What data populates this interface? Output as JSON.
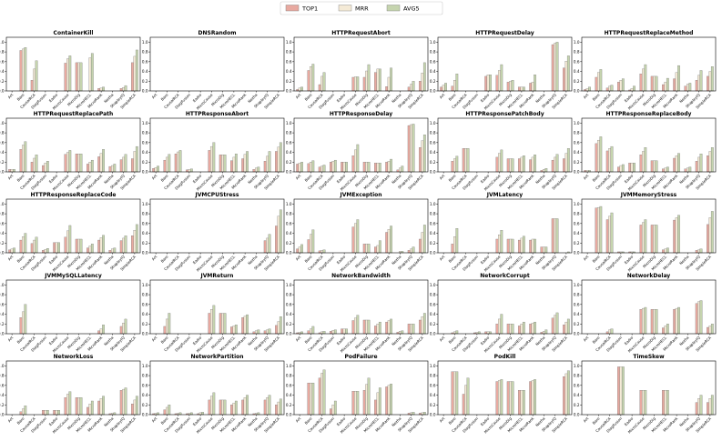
{
  "chart_data": {
    "type": "bar",
    "legend": {
      "placement": "top-center",
      "entries": [
        {
          "name": "TOP1",
          "color": "#e8a9a0"
        },
        {
          "name": "MRR",
          "color": "#f4ead6"
        },
        {
          "name": "AVG5",
          "color": "#c5d4ae"
        }
      ]
    },
    "categories": [
      "Art",
      "Baro",
      "CausalRCA",
      "DiagFusion",
      "Eadro",
      "MicroCause",
      "MicroDig",
      "MicroHECL",
      "MicroRank",
      "Nezha",
      "ShapleyIQ",
      "SimpleRCA"
    ],
    "yticks": [
      "0.0",
      "0.2",
      "0.4",
      "0.6",
      "0.8",
      "1.0"
    ],
    "ylim": [
      0,
      1.1
    ],
    "subplots": [
      {
        "title": "ContainerKill",
        "TOP1": [
          0,
          0.83,
          0.22,
          0,
          0,
          0.57,
          0.58,
          0,
          0.05,
          0,
          0.05,
          0.58
        ],
        "MRR": [
          0,
          0.86,
          0.45,
          0,
          0,
          0.66,
          0.58,
          0.68,
          0.06,
          0,
          0.07,
          0.71
        ],
        "AVG5": [
          0,
          0.89,
          0.62,
          0,
          0,
          0.72,
          0.58,
          0.77,
          0.08,
          0,
          0.11,
          0.84
        ]
      },
      {
        "title": "DNSRandom",
        "TOP1": [
          0,
          0,
          0,
          0,
          0,
          0,
          0,
          0,
          0,
          0,
          0,
          0
        ],
        "MRR": [
          0,
          0,
          0,
          0,
          0,
          0,
          0,
          0,
          0,
          0,
          0,
          0
        ],
        "AVG5": [
          0,
          0,
          0,
          0,
          0,
          0,
          0,
          0,
          0,
          0,
          0,
          0
        ]
      },
      {
        "title": "HTTPRequestAbort",
        "TOP1": [
          0.03,
          0.42,
          0.13,
          0,
          0,
          0.28,
          0.28,
          0.38,
          0.09,
          0,
          0.08,
          0.2
        ],
        "MRR": [
          0.06,
          0.5,
          0.3,
          0,
          0,
          0.29,
          0.41,
          0.45,
          0.28,
          0,
          0.14,
          0.37
        ],
        "AVG5": [
          0.08,
          0.55,
          0.38,
          0,
          0,
          0.29,
          0.54,
          0.45,
          0.47,
          0,
          0.2,
          0.58
        ]
      },
      {
        "title": "HTTPRequestDelay",
        "TOP1": [
          0.08,
          0.1,
          0,
          0,
          0.3,
          0.32,
          0.18,
          0.08,
          0.16,
          0,
          0.95,
          0.47
        ],
        "MRR": [
          0.12,
          0.22,
          0,
          0,
          0.33,
          0.42,
          0.2,
          0.08,
          0.18,
          0,
          0.98,
          0.61
        ],
        "AVG5": [
          0.16,
          0.35,
          0,
          0,
          0.33,
          0.54,
          0.22,
          0.08,
          0.33,
          0,
          1.0,
          0.72
        ]
      },
      {
        "title": "HTTPRequestReplaceMethod",
        "TOP1": [
          0.03,
          0.28,
          0.06,
          0.18,
          0.02,
          0.35,
          0.3,
          0.13,
          0.25,
          0.1,
          0.22,
          0.3
        ],
        "MRR": [
          0.05,
          0.38,
          0.1,
          0.22,
          0.05,
          0.45,
          0.3,
          0.18,
          0.38,
          0.14,
          0.32,
          0.4
        ],
        "AVG5": [
          0.08,
          0.44,
          0.12,
          0.25,
          0.1,
          0.54,
          0.3,
          0.26,
          0.52,
          0.16,
          0.42,
          0.5
        ]
      },
      {
        "title": "HTTPRequestReplacePath",
        "TOP1": [
          0.05,
          0.46,
          0.2,
          0.13,
          0,
          0.36,
          0.37,
          0.16,
          0.31,
          0.11,
          0.25,
          0.27
        ],
        "MRR": [
          0.05,
          0.55,
          0.28,
          0.18,
          0,
          0.4,
          0.37,
          0.2,
          0.38,
          0.13,
          0.3,
          0.42
        ],
        "AVG5": [
          0.05,
          0.62,
          0.35,
          0.22,
          0,
          0.44,
          0.37,
          0.24,
          0.46,
          0.16,
          0.36,
          0.52
        ]
      },
      {
        "title": "HTTPResponseAbort",
        "TOP1": [
          0.07,
          0.24,
          0.37,
          0.04,
          0,
          0.44,
          0.35,
          0.23,
          0.27,
          0.05,
          0.22,
          0.42
        ],
        "MRR": [
          0.09,
          0.3,
          0.41,
          0.05,
          0,
          0.52,
          0.35,
          0.3,
          0.36,
          0.08,
          0.32,
          0.51
        ],
        "AVG5": [
          0.12,
          0.36,
          0.44,
          0.06,
          0,
          0.6,
          0.35,
          0.37,
          0.42,
          0.1,
          0.42,
          0.6
        ]
      },
      {
        "title": "HTTPResponseDelay",
        "TOP1": [
          0.16,
          0.17,
          0.1,
          0.2,
          0.2,
          0.33,
          0.2,
          0.18,
          0.2,
          0.04,
          0.95,
          0.5
        ],
        "MRR": [
          0.18,
          0.2,
          0.12,
          0.22,
          0.2,
          0.45,
          0.2,
          0.18,
          0.22,
          0.08,
          0.97,
          0.64
        ],
        "AVG5": [
          0.2,
          0.23,
          0.14,
          0.24,
          0.2,
          0.56,
          0.2,
          0.18,
          0.26,
          0.12,
          0.98,
          0.76
        ]
      },
      {
        "title": "HTTPResponsePatchBody",
        "TOP1": [
          0,
          0.22,
          0.48,
          0,
          0,
          0.3,
          0.27,
          0.27,
          0.25,
          0.03,
          0.24,
          0.27
        ],
        "MRR": [
          0,
          0.27,
          0.48,
          0,
          0,
          0.38,
          0.27,
          0.3,
          0.3,
          0.05,
          0.3,
          0.38
        ],
        "AVG5": [
          0,
          0.32,
          0.48,
          0,
          0,
          0.45,
          0.27,
          0.33,
          0.35,
          0.07,
          0.36,
          0.48
        ]
      },
      {
        "title": "HTTPResponseReplaceBody",
        "TOP1": [
          0.03,
          0.58,
          0.43,
          0.1,
          0.18,
          0.35,
          0.23,
          0.06,
          0.28,
          0.06,
          0.22,
          0.33
        ],
        "MRR": [
          0.03,
          0.65,
          0.48,
          0.13,
          0.18,
          0.42,
          0.23,
          0.08,
          0.33,
          0.08,
          0.3,
          0.42
        ],
        "AVG5": [
          0.03,
          0.72,
          0.52,
          0.15,
          0.18,
          0.5,
          0.23,
          0.1,
          0.38,
          0.1,
          0.37,
          0.5
        ]
      },
      {
        "title": "HTTPResponseReplaceCode",
        "TOP1": [
          0.06,
          0.26,
          0.19,
          0.05,
          0.21,
          0.32,
          0.28,
          0.1,
          0.26,
          0.05,
          0.25,
          0.35
        ],
        "MRR": [
          0.08,
          0.33,
          0.26,
          0.07,
          0.21,
          0.45,
          0.28,
          0.14,
          0.31,
          0.08,
          0.3,
          0.46
        ],
        "AVG5": [
          0.1,
          0.4,
          0.32,
          0.09,
          0.21,
          0.56,
          0.28,
          0.18,
          0.36,
          0.1,
          0.35,
          0.58
        ]
      },
      {
        "title": "JVMCPUStress",
        "TOP1": [
          0,
          0,
          0,
          0,
          0,
          0,
          0,
          0,
          0,
          0,
          0.25,
          0.55
        ],
        "MRR": [
          0,
          0,
          0,
          0,
          0,
          0,
          0,
          0,
          0,
          0,
          0.3,
          0.75
        ],
        "AVG5": [
          0,
          0,
          0,
          0,
          0,
          0,
          0,
          0,
          0,
          0,
          0.38,
          0.88
        ]
      },
      {
        "title": "JVMException",
        "TOP1": [
          0.08,
          0.27,
          0.04,
          0,
          0,
          0.53,
          0.18,
          0.12,
          0.42,
          0,
          0.05,
          0.28
        ],
        "MRR": [
          0.12,
          0.38,
          0.05,
          0,
          0,
          0.6,
          0.18,
          0.15,
          0.48,
          0.03,
          0.08,
          0.42
        ],
        "AVG5": [
          0.17,
          0.47,
          0.06,
          0,
          0,
          0.68,
          0.18,
          0.25,
          0.55,
          0.03,
          0.12,
          0.57
        ]
      },
      {
        "title": "JVMLatency",
        "TOP1": [
          0,
          0.18,
          0,
          0,
          0,
          0.28,
          0.28,
          0.26,
          0.26,
          0.12,
          0.7,
          0
        ],
        "MRR": [
          0,
          0.33,
          0,
          0,
          0,
          0.37,
          0.28,
          0.3,
          0.28,
          0.12,
          0.7,
          0
        ],
        "AVG5": [
          0,
          0.5,
          0,
          0,
          0,
          0.46,
          0.28,
          0.34,
          0.28,
          0.12,
          0.7,
          0.02
        ]
      },
      {
        "title": "JVMMemoryStress",
        "TOP1": [
          0,
          0.92,
          0.68,
          0.02,
          0.02,
          0.57,
          0.57,
          0.06,
          0.67,
          0,
          0.05,
          0.58
        ],
        "MRR": [
          0,
          0.93,
          0.75,
          0.02,
          0.02,
          0.62,
          0.57,
          0.08,
          0.72,
          0,
          0.06,
          0.72
        ],
        "AVG5": [
          0,
          0.95,
          0.82,
          0.02,
          0.02,
          0.68,
          0.57,
          0.1,
          0.77,
          0,
          0.08,
          0.85
        ]
      },
      {
        "title": "JVMMySQLLatency",
        "TOP1": [
          0,
          0.33,
          0,
          0,
          0,
          0,
          0,
          0,
          0.06,
          0,
          0.15,
          0
        ],
        "MRR": [
          0,
          0.45,
          0,
          0,
          0,
          0,
          0,
          0,
          0.1,
          0,
          0.22,
          0
        ],
        "AVG5": [
          0,
          0.6,
          0,
          0,
          0,
          0,
          0,
          0,
          0.18,
          0,
          0.3,
          0
        ]
      },
      {
        "title": "JVMReturn",
        "TOP1": [
          0,
          0.15,
          0,
          0,
          0,
          0.42,
          0.42,
          0.14,
          0.33,
          0.04,
          0.06,
          0.17
        ],
        "MRR": [
          0,
          0.3,
          0,
          0,
          0,
          0.5,
          0.42,
          0.16,
          0.36,
          0.06,
          0.08,
          0.25
        ],
        "AVG5": [
          0,
          0.42,
          0,
          0,
          0,
          0.58,
          0.42,
          0.18,
          0.39,
          0.08,
          0.1,
          0.35
        ]
      },
      {
        "title": "NetworkBandwidth",
        "TOP1": [
          0.02,
          0.06,
          0.02,
          0.05,
          0.1,
          0.27,
          0.28,
          0.16,
          0.24,
          0.03,
          0.2,
          0.28
        ],
        "MRR": [
          0.03,
          0.1,
          0.04,
          0.07,
          0.1,
          0.32,
          0.28,
          0.2,
          0.27,
          0.05,
          0.2,
          0.35
        ],
        "AVG5": [
          0.04,
          0.15,
          0.05,
          0.08,
          0.1,
          0.38,
          0.28,
          0.24,
          0.3,
          0.06,
          0.2,
          0.42
        ]
      },
      {
        "title": "NetworkCorrupt",
        "TOP1": [
          0,
          0.02,
          0,
          0.02,
          0.04,
          0.2,
          0.2,
          0.16,
          0.2,
          0.03,
          0.32,
          0.18
        ],
        "MRR": [
          0,
          0.04,
          0,
          0.03,
          0.04,
          0.3,
          0.2,
          0.2,
          0.22,
          0.05,
          0.38,
          0.24
        ],
        "AVG5": [
          0,
          0.06,
          0,
          0.04,
          0.04,
          0.4,
          0.2,
          0.24,
          0.24,
          0.08,
          0.43,
          0.3
        ]
      },
      {
        "title": "NetworkDelay",
        "TOP1": [
          0,
          0,
          0.04,
          0,
          0,
          0.5,
          0.5,
          0.12,
          0.5,
          0,
          0.62,
          0.13
        ],
        "MRR": [
          0,
          0,
          0.08,
          0,
          0,
          0.52,
          0.5,
          0.16,
          0.52,
          0,
          0.66,
          0.16
        ],
        "AVG5": [
          0,
          0,
          0.1,
          0,
          0,
          0.54,
          0.5,
          0.2,
          0.54,
          0,
          0.68,
          0.2
        ]
      },
      {
        "title": "NetworkLoss",
        "TOP1": [
          0,
          0.06,
          0,
          0.09,
          0.09,
          0.35,
          0.35,
          0.15,
          0.28,
          0.02,
          0.5,
          0.22
        ],
        "MRR": [
          0,
          0.12,
          0,
          0.09,
          0.09,
          0.42,
          0.35,
          0.22,
          0.33,
          0.03,
          0.52,
          0.3
        ],
        "AVG5": [
          0,
          0.18,
          0,
          0.09,
          0.09,
          0.47,
          0.35,
          0.28,
          0.38,
          0.04,
          0.55,
          0.38
        ]
      },
      {
        "title": "NetworkPartition",
        "TOP1": [
          0.02,
          0.1,
          0.02,
          0.02,
          0.02,
          0.3,
          0.3,
          0.2,
          0.3,
          0.02,
          0.3,
          0.2
        ],
        "MRR": [
          0.03,
          0.15,
          0.03,
          0.03,
          0.04,
          0.38,
          0.3,
          0.24,
          0.35,
          0.03,
          0.35,
          0.26
        ],
        "AVG5": [
          0.04,
          0.2,
          0.04,
          0.04,
          0.05,
          0.45,
          0.3,
          0.28,
          0.4,
          0.04,
          0.4,
          0.32
        ]
      },
      {
        "title": "PodFailure",
        "TOP1": [
          0,
          0.65,
          0.75,
          0.12,
          0,
          0.48,
          0.5,
          0.3,
          0.57,
          0,
          0.03,
          0.03
        ],
        "MRR": [
          0,
          0.65,
          0.85,
          0.2,
          0,
          0.48,
          0.62,
          0.45,
          0.6,
          0,
          0.04,
          0.04
        ],
        "AVG5": [
          0,
          0.65,
          0.92,
          0.28,
          0,
          0.48,
          0.75,
          0.55,
          0.63,
          0,
          0.05,
          0.05
        ]
      },
      {
        "title": "PodKill",
        "TOP1": [
          0,
          0.88,
          0.42,
          0,
          0,
          0.68,
          0.68,
          0.5,
          0.68,
          0,
          0,
          0.78
        ],
        "MRR": [
          0,
          0.88,
          0.6,
          0,
          0,
          0.7,
          0.68,
          0.5,
          0.7,
          0,
          0,
          0.84
        ],
        "AVG5": [
          0,
          0.88,
          0.75,
          0,
          0,
          0.72,
          0.68,
          0.5,
          0.72,
          0,
          0,
          0.9
        ]
      },
      {
        "title": "TimeSkew",
        "TOP1": [
          0,
          0,
          0,
          0.98,
          0,
          0.5,
          0,
          0.5,
          0,
          0,
          0.25,
          0.25
        ],
        "MRR": [
          0,
          0,
          0,
          0.98,
          0,
          0.5,
          0,
          0.5,
          0,
          0,
          0.33,
          0.33
        ],
        "AVG5": [
          0,
          0,
          0,
          0.98,
          0,
          0.5,
          0,
          0.5,
          0,
          0,
          0.4,
          0.4
        ]
      }
    ]
  }
}
